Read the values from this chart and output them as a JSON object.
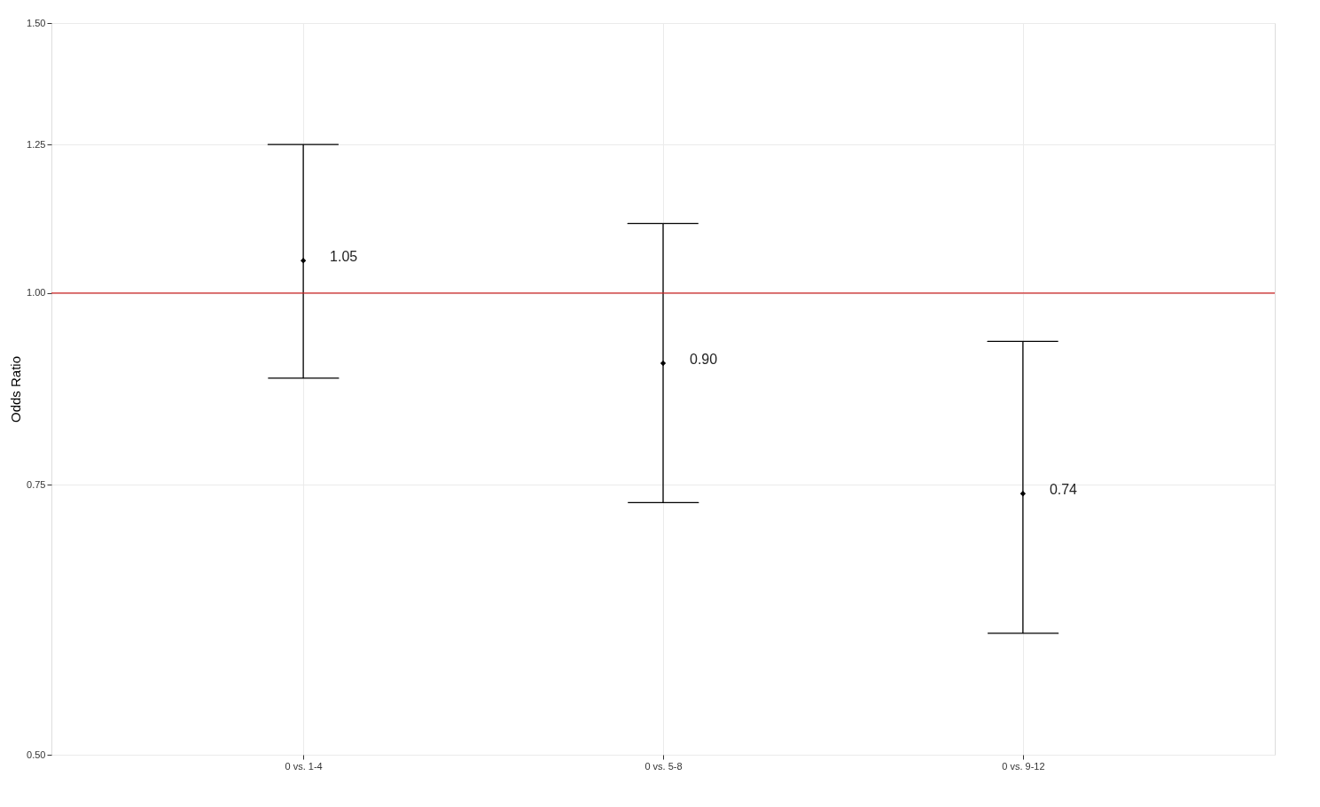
{
  "chart_data": {
    "type": "scatter",
    "ylabel": "Odds Ratio",
    "categories": [
      "0 vs. 1-4",
      "0 vs. 5-8",
      "0 vs. 9-12"
    ],
    "values": [
      1.05,
      0.9,
      0.74
    ],
    "errors": [
      [
        0.88,
        1.25
      ],
      [
        0.73,
        1.11
      ],
      [
        0.6,
        0.93
      ]
    ],
    "value_labels": [
      "1.05",
      "0.90",
      "0.74"
    ],
    "color": "#000000",
    "marker": "diamond",
    "ylim": [
      0.5,
      1.5
    ],
    "yticks": [
      {
        "value": 0.5,
        "label": "0.50"
      },
      {
        "value": 0.75,
        "label": "0.75"
      },
      {
        "value": 1.0,
        "label": "1.00"
      },
      {
        "value": 1.25,
        "label": "1.25"
      },
      {
        "value": 1.5,
        "label": "1.50"
      }
    ],
    "log": true,
    "grid": true,
    "ref_lines": [
      {
        "axis": "y",
        "value": 1.0,
        "label": null,
        "color": "#cc2222"
      }
    ]
  }
}
